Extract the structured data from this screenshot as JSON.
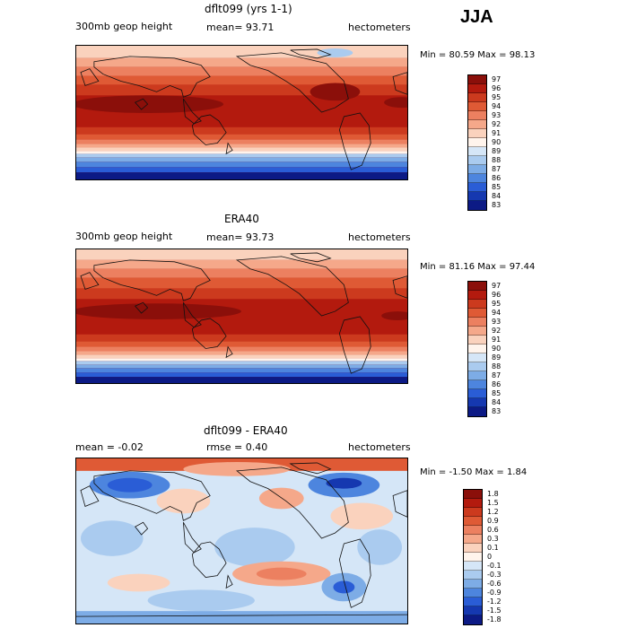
{
  "season": "JJA",
  "panels": [
    {
      "title": "dflt099 (yrs 1-1)",
      "field_label": "300mb geop height",
      "stat_text": "mean=  93.71",
      "units": "hectometers",
      "minmax": "Min =  80.59 Max =  98.13",
      "map_type": "absolute",
      "colorbar": {
        "labels": [
          "97",
          "96",
          "95",
          "94",
          "93",
          "92",
          "91",
          "90",
          "89",
          "88",
          "87",
          "86",
          "85",
          "84",
          "83"
        ],
        "colors": [
          "#8b0f0a",
          "#b31a0e",
          "#cc3a1e",
          "#df5a35",
          "#ec8060",
          "#f5a88a",
          "#fad2bd",
          "#fff4ec",
          "#d5e6f7",
          "#aacbef",
          "#7dace6",
          "#4d85de",
          "#2a5dd6",
          "#1538b0",
          "#0c1a85"
        ]
      }
    },
    {
      "title": "ERA40",
      "field_label": "300mb geop height",
      "stat_text": "mean=  93.73",
      "units": "hectometers",
      "minmax": "Min =  81.16 Max =  97.44",
      "map_type": "absolute",
      "colorbar": {
        "labels": [
          "97",
          "96",
          "95",
          "94",
          "93",
          "92",
          "91",
          "90",
          "89",
          "88",
          "87",
          "86",
          "85",
          "84",
          "83"
        ],
        "colors": [
          "#8b0f0a",
          "#b31a0e",
          "#cc3a1e",
          "#df5a35",
          "#ec8060",
          "#f5a88a",
          "#fad2bd",
          "#fff4ec",
          "#d5e6f7",
          "#aacbef",
          "#7dace6",
          "#4d85de",
          "#2a5dd6",
          "#1538b0",
          "#0c1a85"
        ]
      }
    },
    {
      "title": "dflt099 - ERA40",
      "field_label": "mean =  -0.02",
      "stat_text": "rmse =   0.40",
      "units": "hectometers",
      "minmax": "Min =  -1.50 Max =   1.84",
      "map_type": "difference",
      "colorbar": {
        "labels": [
          "1.8",
          "1.5",
          "1.2",
          "0.9",
          "0.6",
          "0.3",
          "0.1",
          "0",
          "-0.1",
          "-0.3",
          "-0.6",
          "-0.9",
          "-1.2",
          "-1.5",
          "-1.8"
        ],
        "colors": [
          "#8b0f0a",
          "#b31a0e",
          "#cc3a1e",
          "#df5a35",
          "#ec8060",
          "#f5a88a",
          "#fad2bd",
          "#fff4ec",
          "#d5e6f7",
          "#aacbef",
          "#7dace6",
          "#4d85de",
          "#2a5dd6",
          "#1538b0",
          "#0c1a85"
        ]
      }
    }
  ]
}
